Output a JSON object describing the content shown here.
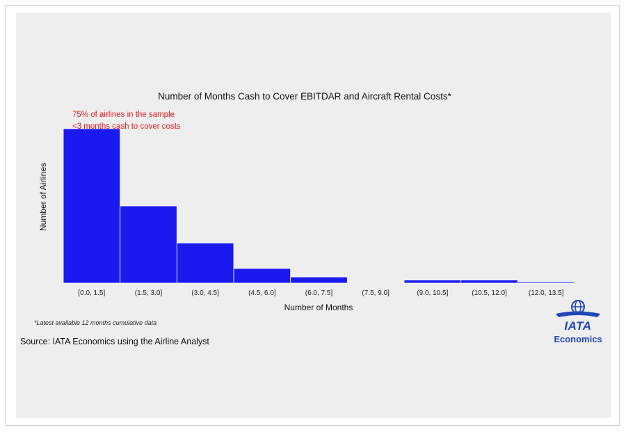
{
  "chart_data": {
    "type": "bar",
    "title": "Number of Months  Cash to Cover EBITDAR and Aircraft Rental Costs*",
    "xlabel": "Number of Months",
    "ylabel": "Number of Airlines",
    "categories": [
      "[0.0, 1.5]",
      "(1.5, 3.0]",
      "(3.0, 4.5]",
      "(4.5, 6.0]",
      "(6.0, 7.5]",
      "(7.5, 9.0]",
      "(9.0, 10.5]",
      "(10.5, 12.0]",
      "(12.0, 13.5]"
    ],
    "values": [
      100,
      50,
      26,
      9.5,
      4,
      0,
      2,
      2,
      0.8
    ],
    "ylim": [
      0,
      100
    ],
    "bar_color": "#1a1aef",
    "grid": false,
    "annotation": {
      "line1": "75% of airlines in the sample",
      "line2": "<3 months cash to cover costs",
      "color": "#e01a1a"
    }
  },
  "footnote": "*Latest available 12 months cumulative data",
  "source": "Source: IATA Economics using the Airline Analyst",
  "logo": {
    "icon": "globe-icon",
    "name": "IATA",
    "subtitle": "Economics",
    "color": "#1f47b8"
  }
}
